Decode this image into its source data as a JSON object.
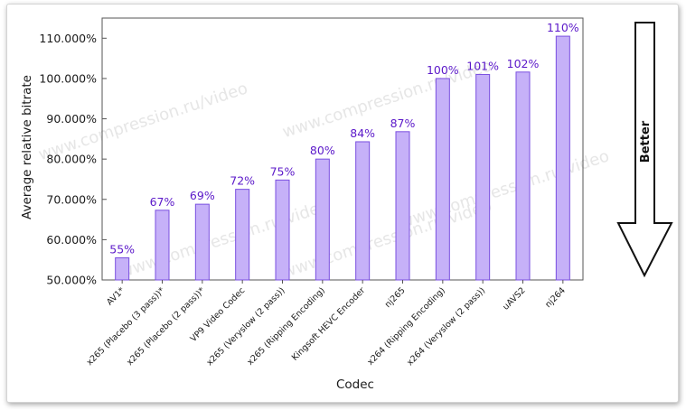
{
  "chart_data": {
    "type": "bar",
    "xlabel": "Codec",
    "ylabel": "Average relative bitrate",
    "ylim": [
      50,
      115
    ],
    "yticks": [
      50,
      60,
      70,
      80,
      90,
      100,
      110
    ],
    "ytick_labels": [
      "50.000%",
      "60.000%",
      "70.000%",
      "80.000%",
      "90.000%",
      "100.000%",
      "110.000%"
    ],
    "categories": [
      "AV1*",
      "x265 (Placebo (3 pass))*",
      "x265 (Placebo (2 pass))*",
      "VP9 Video Codec",
      "x265 (Veryslow (2 pass))",
      "x265 (Ripping Encoding)",
      "Kingsoft HEVC Encoder",
      "nj265",
      "x264 (Ripping Encoding)",
      "x264 (Veryslow (2 pass))",
      "uAVS2",
      "nj264"
    ],
    "values": [
      55.5,
      67.3,
      68.8,
      72.5,
      74.8,
      80.0,
      84.3,
      86.8,
      100.0,
      101.0,
      101.6,
      110.5
    ],
    "data_labels": [
      "55%",
      "67%",
      "69%",
      "72%",
      "75%",
      "80%",
      "84%",
      "87%",
      "100%",
      "101%",
      "102%",
      "110%"
    ],
    "grid": false,
    "bar_color": "#c6b1f8",
    "bar_edge_color": "#7a4fe0",
    "label_color": "#5b18c9"
  },
  "watermark": "www.compression.ru/video",
  "arrow": {
    "label": "Better"
  }
}
